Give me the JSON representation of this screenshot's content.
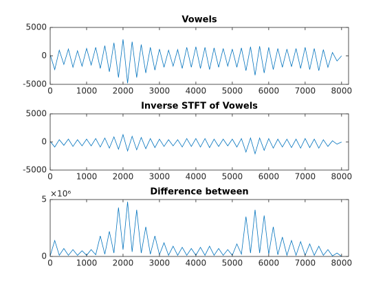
{
  "chart_data": [
    {
      "type": "line",
      "title": "Vowels",
      "color": "#0072bd",
      "x": [
        0,
        125,
        250,
        375,
        500,
        625,
        750,
        875,
        1000,
        1125,
        1250,
        1375,
        1500,
        1625,
        1750,
        1875,
        2000,
        2125,
        2250,
        2375,
        2500,
        2625,
        2750,
        2875,
        3000,
        3125,
        3250,
        3375,
        3500,
        3625,
        3750,
        3875,
        4000,
        4125,
        4250,
        4375,
        4500,
        4625,
        4750,
        4875,
        5000,
        5125,
        5250,
        5375,
        5500,
        5625,
        5750,
        5875,
        6000,
        6125,
        6250,
        6375,
        6500,
        6625,
        6750,
        6875,
        7000,
        7125,
        7250,
        7375,
        7500,
        7625,
        7750,
        7875,
        8000
      ],
      "values": [
        200,
        -2400,
        1000,
        -1500,
        1200,
        -2000,
        900,
        -1800,
        1300,
        -1600,
        1500,
        -2200,
        1800,
        -2800,
        2300,
        -3800,
        2900,
        -4800,
        2500,
        -3800,
        2000,
        -3000,
        1500,
        -2500,
        1200,
        -2000,
        1000,
        -1800,
        1100,
        -2200,
        1500,
        -2000,
        1600,
        -2200,
        1500,
        -2400,
        1400,
        -2000,
        1300,
        -1800,
        1200,
        -2000,
        1400,
        -2600,
        1600,
        -3400,
        1700,
        -3000,
        1500,
        -2400,
        1300,
        -2000,
        1200,
        -1900,
        1300,
        -2200,
        1500,
        -2400,
        1300,
        -2600,
        1100,
        -2000,
        600,
        -900,
        0
      ],
      "xlim": [
        0,
        8192
      ],
      "xticks": [
        0,
        1000,
        2000,
        3000,
        4000,
        5000,
        6000,
        7000,
        8000
      ],
      "ylim": [
        -5000,
        5000
      ],
      "yticks": [
        -5000,
        0,
        5000
      ]
    },
    {
      "type": "line",
      "title": "Inverse STFT of Vowels",
      "color": "#0072bd",
      "x": [
        0,
        125,
        250,
        375,
        500,
        625,
        750,
        875,
        1000,
        1125,
        1250,
        1375,
        1500,
        1625,
        1750,
        1875,
        2000,
        2125,
        2250,
        2375,
        2500,
        2625,
        2750,
        2875,
        3000,
        3125,
        3250,
        3375,
        3500,
        3625,
        3750,
        3875,
        4000,
        4125,
        4250,
        4375,
        4500,
        4625,
        4750,
        4875,
        5000,
        5125,
        5250,
        5375,
        5500,
        5625,
        5750,
        5875,
        6000,
        6125,
        6250,
        6375,
        6500,
        6625,
        6750,
        6875,
        7000,
        7125,
        7250,
        7375,
        7500,
        7625,
        7750,
        7875,
        8000
      ],
      "values": [
        100,
        -900,
        400,
        -600,
        500,
        -800,
        400,
        -700,
        500,
        -700,
        600,
        -900,
        700,
        -1100,
        900,
        -1300,
        1300,
        -1600,
        1000,
        -1400,
        800,
        -1200,
        600,
        -1000,
        500,
        -800,
        400,
        -700,
        400,
        -900,
        600,
        -800,
        600,
        -900,
        600,
        -1000,
        500,
        -800,
        500,
        -700,
        500,
        -900,
        600,
        -1800,
        700,
        -2100,
        700,
        -1500,
        600,
        -1100,
        500,
        -900,
        500,
        -1000,
        500,
        -1100,
        600,
        -1000,
        500,
        -1100,
        400,
        -800,
        200,
        -400,
        0
      ],
      "xlim": [
        0,
        8192
      ],
      "xticks": [
        0,
        1000,
        2000,
        3000,
        4000,
        5000,
        6000,
        7000,
        8000
      ],
      "ylim": [
        -5000,
        5000
      ],
      "yticks": [
        -5000,
        0,
        5000
      ]
    },
    {
      "type": "line",
      "title": "Difference between",
      "color": "#0072bd",
      "y_exponent": "×10⁶",
      "x": [
        0,
        125,
        250,
        375,
        500,
        625,
        750,
        875,
        1000,
        1125,
        1250,
        1375,
        1500,
        1625,
        1750,
        1875,
        2000,
        2125,
        2250,
        2375,
        2500,
        2625,
        2750,
        2875,
        3000,
        3125,
        3250,
        3375,
        3500,
        3625,
        3750,
        3875,
        4000,
        4125,
        4250,
        4375,
        4500,
        4625,
        4750,
        4875,
        5000,
        5125,
        5250,
        5375,
        5500,
        5625,
        5750,
        5875,
        6000,
        6125,
        6250,
        6375,
        6500,
        6625,
        6750,
        6875,
        7000,
        7125,
        7250,
        7375,
        7500,
        7625,
        7750,
        7875,
        8000
      ],
      "values": [
        50000,
        1400000,
        100000,
        700000,
        100000,
        600000,
        100000,
        500000,
        100000,
        600000,
        150000,
        1800000,
        200000,
        2200000,
        300000,
        4300000,
        600000,
        4800000,
        400000,
        4100000,
        300000,
        2600000,
        200000,
        1800000,
        150000,
        1200000,
        100000,
        900000,
        100000,
        800000,
        100000,
        700000,
        100000,
        800000,
        100000,
        900000,
        100000,
        700000,
        100000,
        600000,
        100000,
        1100000,
        200000,
        3500000,
        300000,
        4100000,
        300000,
        3600000,
        200000,
        2600000,
        150000,
        1700000,
        100000,
        1400000,
        100000,
        1300000,
        100000,
        1100000,
        100000,
        900000,
        100000,
        600000,
        50000,
        300000,
        0
      ],
      "xlim": [
        0,
        8192
      ],
      "xticks": [
        0,
        1000,
        2000,
        3000,
        4000,
        5000,
        6000,
        7000,
        8000
      ],
      "ylim": [
        0,
        5000000
      ],
      "yticks": [
        0,
        {
          "value": 5000000,
          "label": "5"
        }
      ]
    }
  ]
}
